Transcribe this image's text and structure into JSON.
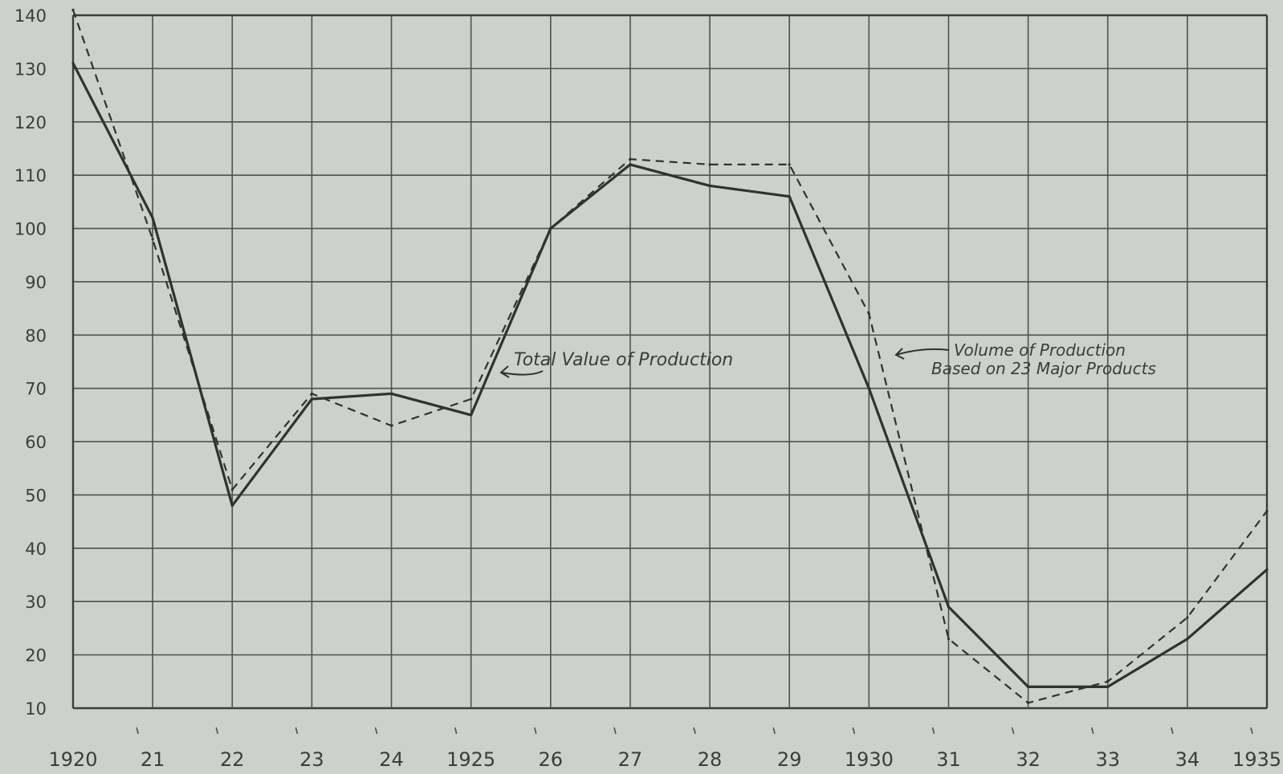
{
  "chart_data": {
    "type": "line",
    "x": [
      1920,
      1921,
      1922,
      1923,
      1924,
      1925,
      1926,
      1927,
      1928,
      1929,
      1930,
      1931,
      1932,
      1933,
      1934,
      1935
    ],
    "x_tick_labels": [
      "1920",
      "21",
      "22",
      "23",
      "24",
      "1925",
      "26",
      "27",
      "28",
      "29",
      "1930",
      "31",
      "32",
      "33",
      "34",
      "1935"
    ],
    "y_tick_labels": [
      "10",
      "20",
      "30",
      "40",
      "50",
      "60",
      "70",
      "80",
      "90",
      "100",
      "110",
      "120",
      "130",
      "140"
    ],
    "ylim": [
      10,
      140
    ],
    "xlim": [
      1920,
      1935
    ],
    "grid": true,
    "series": [
      {
        "name": "Total Value of Production",
        "style": "solid",
        "values": [
          131,
          102,
          48,
          68,
          69,
          65,
          100,
          112,
          108,
          106,
          70,
          29,
          14,
          14,
          23,
          36
        ]
      },
      {
        "name": "Volume of Production Based on 23 Major Products",
        "style": "dashed",
        "values": [
          141,
          98,
          51,
          69,
          63,
          68,
          100,
          113,
          112,
          112,
          84,
          23,
          11,
          15,
          27,
          47
        ]
      }
    ],
    "annotations": [
      {
        "lines": [
          "Total Value of Production"
        ]
      },
      {
        "lines": [
          "Volume of Production",
          "Based on 23 Major Products"
        ]
      }
    ],
    "colors": {
      "background": "#cdd1cc",
      "ink": "#2f3230"
    }
  }
}
